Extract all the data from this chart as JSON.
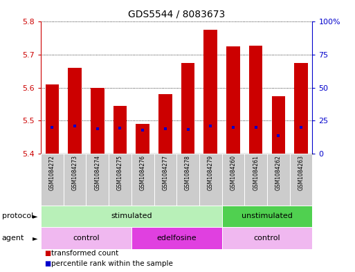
{
  "title": "GDS5544 / 8083673",
  "samples": [
    "GSM1084272",
    "GSM1084273",
    "GSM1084274",
    "GSM1084275",
    "GSM1084276",
    "GSM1084277",
    "GSM1084278",
    "GSM1084279",
    "GSM1084260",
    "GSM1084261",
    "GSM1084262",
    "GSM1084263"
  ],
  "bar_tops": [
    5.61,
    5.66,
    5.6,
    5.545,
    5.49,
    5.58,
    5.675,
    5.775,
    5.725,
    5.728,
    5.575,
    5.675
  ],
  "bar_bottoms": [
    5.4,
    5.4,
    5.4,
    5.4,
    5.4,
    5.4,
    5.4,
    5.4,
    5.4,
    5.4,
    5.4,
    5.4
  ],
  "percentile_vals": [
    5.48,
    5.485,
    5.475,
    5.478,
    5.472,
    5.475,
    5.474,
    5.485,
    5.48,
    5.48,
    5.455,
    5.48
  ],
  "bar_color": "#cc0000",
  "percentile_color": "#0000cc",
  "ylim": [
    5.4,
    5.8
  ],
  "yticks": [
    5.4,
    5.5,
    5.6,
    5.7,
    5.8
  ],
  "y2ticks": [
    0,
    25,
    50,
    75,
    100
  ],
  "y2labels": [
    "0",
    "25",
    "50",
    "75",
    "100%"
  ],
  "grid_color": "#000000",
  "left_axis_color": "#cc0000",
  "right_axis_color": "#0000cc",
  "protocol_groups": [
    {
      "label": "stimulated",
      "start": 0,
      "end": 7,
      "color": "#b8f0b8"
    },
    {
      "label": "unstimulated",
      "start": 8,
      "end": 11,
      "color": "#50d050"
    }
  ],
  "agent_groups": [
    {
      "label": "control",
      "start": 0,
      "end": 3,
      "color": "#f0b8f0"
    },
    {
      "label": "edelfosine",
      "start": 4,
      "end": 7,
      "color": "#e040e0"
    },
    {
      "label": "control",
      "start": 8,
      "end": 11,
      "color": "#f0b8f0"
    }
  ],
  "protocol_label": "protocol",
  "agent_label": "agent",
  "legend_items": [
    {
      "label": "transformed count",
      "color": "#cc0000"
    },
    {
      "label": "percentile rank within the sample",
      "color": "#0000cc"
    }
  ],
  "bar_width": 0.6,
  "xlabel_fontsize": 5.5,
  "label_fontsize": 8,
  "title_fontsize": 10,
  "ytick_fontsize": 8
}
